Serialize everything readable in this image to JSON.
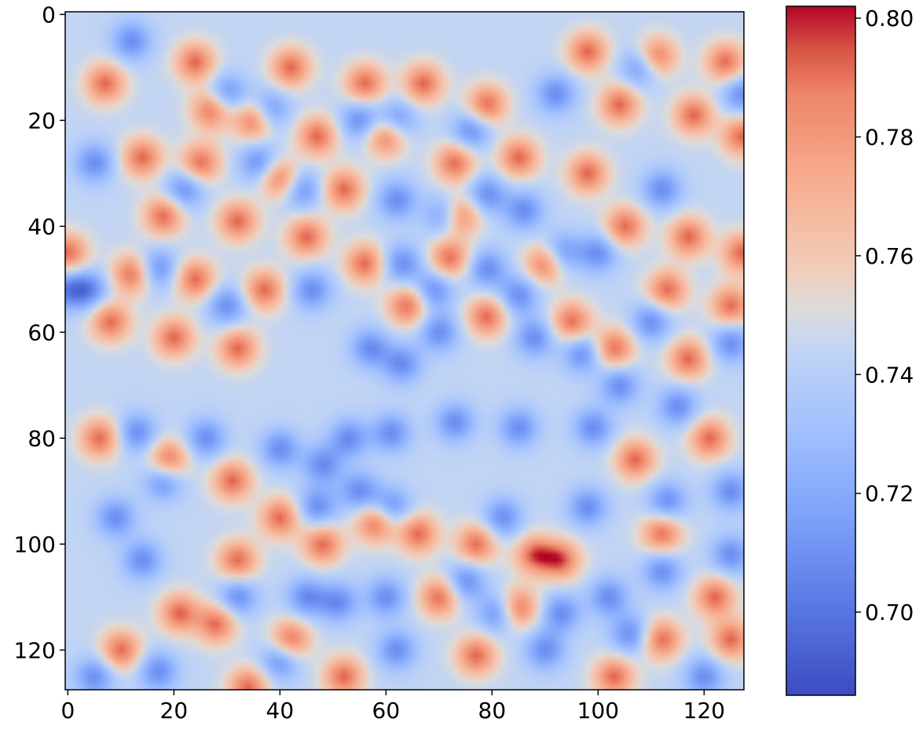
{
  "chart_data": {
    "type": "heatmap",
    "title": "",
    "xlabel": "",
    "ylabel": "",
    "grid_size": [
      128,
      128
    ],
    "colormap": "coolwarm",
    "colormap_low": "#3b4cc0",
    "colormap_mid": "#dddddd",
    "colormap_high": "#b40426",
    "xlim": [
      0,
      127
    ],
    "ylim": [
      127,
      0
    ],
    "y_axis_inverted": true,
    "x_ticks": [
      0,
      20,
      40,
      60,
      80,
      100,
      120
    ],
    "x_tick_labels": [
      "0",
      "20",
      "40",
      "60",
      "80",
      "100",
      "120"
    ],
    "y_ticks": [
      0,
      20,
      40,
      60,
      80,
      100,
      120
    ],
    "y_tick_labels": [
      "0",
      "20",
      "40",
      "60",
      "80",
      "100",
      "120"
    ],
    "value_range": [
      0.686,
      0.802
    ],
    "grid": false,
    "colorbar": {
      "position": "right",
      "ticks": [
        0.7,
        0.72,
        0.74,
        0.76,
        0.78,
        0.8
      ],
      "tick_labels": [
        "0.70",
        "0.72",
        "0.74",
        "0.76",
        "0.78",
        "0.80"
      ]
    },
    "pattern": "spot pattern of local maxima (red) and minima (blue)",
    "hot_spots": [
      [
        7,
        13
      ],
      [
        24,
        9
      ],
      [
        42,
        10
      ],
      [
        56,
        13
      ],
      [
        67,
        13
      ],
      [
        79,
        17
      ],
      [
        98,
        7
      ],
      [
        111,
        8
      ],
      [
        124,
        9
      ],
      [
        14,
        27
      ],
      [
        27,
        18
      ],
      [
        35,
        20
      ],
      [
        47,
        23
      ],
      [
        60,
        23
      ],
      [
        73,
        28
      ],
      [
        85,
        27
      ],
      [
        104,
        17
      ],
      [
        118,
        19
      ],
      [
        127,
        23
      ],
      [
        18,
        38
      ],
      [
        25,
        28
      ],
      [
        32,
        39
      ],
      [
        40,
        31
      ],
      [
        52,
        33
      ],
      [
        74,
        38
      ],
      [
        90,
        47
      ],
      [
        98,
        30
      ],
      [
        105,
        40
      ],
      [
        117,
        42
      ],
      [
        127,
        45
      ],
      [
        0,
        45
      ],
      [
        12,
        49
      ],
      [
        24,
        50
      ],
      [
        37,
        52
      ],
      [
        45,
        42
      ],
      [
        56,
        47
      ],
      [
        64,
        55
      ],
      [
        72,
        46
      ],
      [
        79,
        57
      ],
      [
        8,
        58
      ],
      [
        20,
        61
      ],
      [
        32,
        63
      ],
      [
        95,
        58
      ],
      [
        103,
        63
      ],
      [
        113,
        52
      ],
      [
        125,
        55
      ],
      [
        117,
        65
      ],
      [
        6,
        80
      ],
      [
        19,
        84
      ],
      [
        31,
        88
      ],
      [
        40,
        95
      ],
      [
        32,
        103
      ],
      [
        48,
        100
      ],
      [
        58,
        96
      ],
      [
        66,
        98
      ],
      [
        77,
        100
      ],
      [
        88,
        102
      ],
      [
        93,
        103
      ],
      [
        70,
        110
      ],
      [
        77,
        121
      ],
      [
        85,
        112
      ],
      [
        103,
        125
      ],
      [
        112,
        118
      ],
      [
        122,
        110
      ],
      [
        125,
        118
      ],
      [
        112,
        98
      ],
      [
        121,
        80
      ],
      [
        107,
        84
      ],
      [
        28,
        115
      ],
      [
        42,
        118
      ],
      [
        52,
        125
      ],
      [
        34,
        127
      ],
      [
        10,
        120
      ],
      [
        21,
        113
      ]
    ],
    "cold_spots": [
      [
        12,
        5
      ],
      [
        30,
        15
      ],
      [
        38,
        18
      ],
      [
        55,
        20
      ],
      [
        62,
        20
      ],
      [
        76,
        22
      ],
      [
        92,
        15
      ],
      [
        108,
        10
      ],
      [
        127,
        15
      ],
      [
        5,
        28
      ],
      [
        22,
        33
      ],
      [
        36,
        28
      ],
      [
        44,
        33
      ],
      [
        62,
        35
      ],
      [
        71,
        38
      ],
      [
        79,
        34
      ],
      [
        86,
        37
      ],
      [
        112,
        33
      ],
      [
        0,
        52
      ],
      [
        4,
        52
      ],
      [
        17,
        48
      ],
      [
        30,
        55
      ],
      [
        46,
        52
      ],
      [
        63,
        47
      ],
      [
        69,
        52
      ],
      [
        79,
        48
      ],
      [
        85,
        53
      ],
      [
        93,
        45
      ],
      [
        100,
        45
      ],
      [
        63,
        66
      ],
      [
        57,
        63
      ],
      [
        70,
        60
      ],
      [
        88,
        61
      ],
      [
        97,
        64
      ],
      [
        110,
        58
      ],
      [
        125,
        62
      ],
      [
        13,
        79
      ],
      [
        26,
        80
      ],
      [
        48,
        85
      ],
      [
        53,
        80
      ],
      [
        61,
        79
      ],
      [
        73,
        77
      ],
      [
        85,
        78
      ],
      [
        99,
        78
      ],
      [
        104,
        70
      ],
      [
        115,
        74
      ],
      [
        9,
        95
      ],
      [
        18,
        88
      ],
      [
        40,
        82
      ],
      [
        47,
        93
      ],
      [
        55,
        90
      ],
      [
        61,
        93
      ],
      [
        82,
        95
      ],
      [
        98,
        93
      ],
      [
        113,
        92
      ],
      [
        125,
        90
      ],
      [
        14,
        103
      ],
      [
        32,
        110
      ],
      [
        45,
        110
      ],
      [
        51,
        111
      ],
      [
        60,
        110
      ],
      [
        75,
        107
      ],
      [
        81,
        113
      ],
      [
        93,
        113
      ],
      [
        102,
        110
      ],
      [
        112,
        105
      ],
      [
        17,
        124
      ],
      [
        40,
        122
      ],
      [
        62,
        120
      ],
      [
        90,
        120
      ],
      [
        106,
        117
      ],
      [
        120,
        125
      ],
      [
        5,
        125
      ],
      [
        125,
        102
      ]
    ]
  }
}
